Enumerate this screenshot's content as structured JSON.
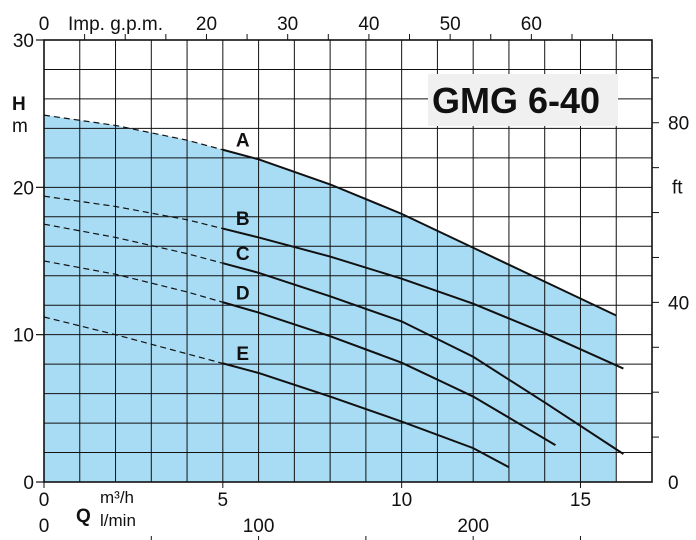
{
  "chart_data": {
    "type": "line",
    "title": "GMG 6-40",
    "y_left": {
      "label_top": "H",
      "label_unit": "m",
      "range": [
        0,
        30
      ],
      "ticks": [
        "0",
        "10",
        "20",
        "30"
      ]
    },
    "y_right": {
      "unit": "ft",
      "ticks": [
        "0",
        "40",
        "80"
      ]
    },
    "x_top": {
      "label": "Imp. g.p.m.",
      "ticks": [
        "0",
        "20",
        "30",
        "40",
        "50",
        "60"
      ]
    },
    "x_m3h": {
      "symbol": "Q",
      "unit": "m³/h",
      "range": [
        0,
        17
      ],
      "ticks": [
        "0",
        "5",
        "10",
        "15"
      ]
    },
    "x_lmin": {
      "unit": "l/min",
      "ticks": [
        "0",
        "100",
        "200"
      ]
    },
    "series": [
      {
        "name": "A",
        "x": [
          0,
          2,
          4,
          6,
          8,
          10,
          12,
          14,
          16
        ],
        "y": [
          24.9,
          24.2,
          23.2,
          21.9,
          20.2,
          18.2,
          15.9,
          13.6,
          11.3
        ],
        "dashed_until": 5
      },
      {
        "name": "B",
        "x": [
          0,
          2,
          4,
          6,
          8,
          10,
          12,
          14,
          16.2
        ],
        "y": [
          19.4,
          18.7,
          17.8,
          16.6,
          15.3,
          13.8,
          12.1,
          10.1,
          7.7
        ],
        "dashed_until": 5
      },
      {
        "name": "C",
        "x": [
          0,
          2,
          4,
          6,
          8,
          10,
          12,
          14,
          16.2
        ],
        "y": [
          17.5,
          16.6,
          15.5,
          14.2,
          12.6,
          10.9,
          8.5,
          5.4,
          1.9
        ],
        "dashed_until": 5
      },
      {
        "name": "D",
        "x": [
          0,
          2,
          4,
          6,
          8,
          10,
          12,
          14.3
        ],
        "y": [
          15.0,
          14.1,
          12.9,
          11.5,
          9.9,
          8.1,
          5.8,
          2.5
        ],
        "dashed_until": 5
      },
      {
        "name": "E",
        "x": [
          0,
          2,
          4,
          6,
          8,
          10,
          12,
          13
        ],
        "y": [
          11.2,
          10.0,
          8.7,
          7.4,
          5.8,
          4.1,
          2.3,
          1.0
        ],
        "dashed_until": 5
      }
    ],
    "grid": true,
    "legend": "none",
    "colors": {
      "fill": "#a8dcf5",
      "grid": "#111111",
      "curve": "#111111",
      "title_bg": "#f0f0f0"
    }
  }
}
